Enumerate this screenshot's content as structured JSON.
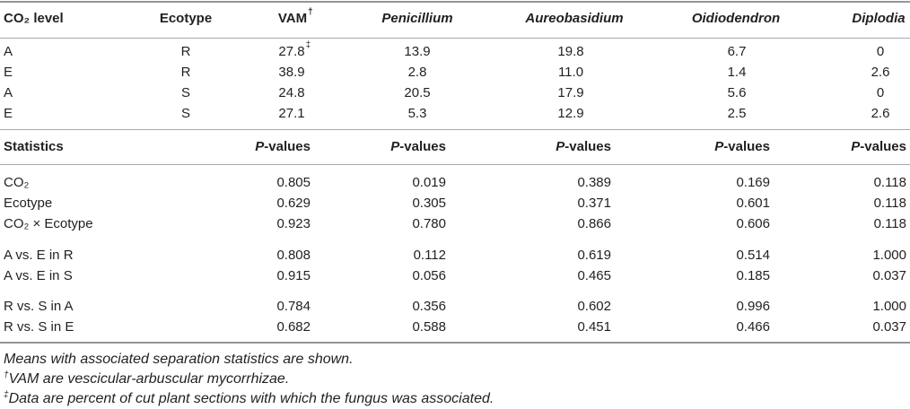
{
  "table": {
    "header": {
      "co2_level": "CO₂ level",
      "ecotype": "Ecotype",
      "vam": "VAM",
      "vam_mark": "†",
      "penicillium": "Penicillium",
      "aureobasidium": "Aureobasidium",
      "oidiodendron": "Oidiodendron",
      "diplodia": "Diplodia"
    },
    "means": [
      {
        "co2_level": "A",
        "ecotype": "R",
        "vam": "27.8",
        "vam_mark": "‡",
        "penicillium": "13.9",
        "aureobasidium": "19.8",
        "oidiodendron": "6.7",
        "diplodia": "0"
      },
      {
        "co2_level": "E",
        "ecotype": "R",
        "vam": "38.9",
        "penicillium": "2.8",
        "aureobasidium": "11.0",
        "oidiodendron": "1.4",
        "diplodia": "2.6"
      },
      {
        "co2_level": "A",
        "ecotype": "S",
        "vam": "24.8",
        "penicillium": "20.5",
        "aureobasidium": "17.9",
        "oidiodendron": "5.6",
        "diplodia": "0"
      },
      {
        "co2_level": "E",
        "ecotype": "S",
        "vam": "27.1",
        "penicillium": "5.3",
        "aureobasidium": "12.9",
        "oidiodendron": "2.5",
        "diplodia": "2.6"
      }
    ],
    "statistics": {
      "label": "Statistics",
      "p_value_headers": [
        {
          "symbol": "P",
          "suffix": "-values"
        },
        {
          "symbol": "P",
          "suffix": "-values"
        },
        {
          "symbol": "P",
          "suffix": "-values"
        },
        {
          "symbol": "P",
          "suffix": "-values"
        },
        {
          "symbol": "P",
          "suffix": "-values"
        }
      ],
      "rows": [
        {
          "label": "CO₂",
          "values": [
            "0.805",
            "0.019",
            "0.389",
            "0.169",
            "0.118"
          ]
        },
        {
          "label": "Ecotype",
          "values": [
            "0.629",
            "0.305",
            "0.371",
            "0.601",
            "0.118"
          ]
        },
        {
          "label": "CO₂ × Ecotype",
          "values": [
            "0.923",
            "0.780",
            "0.866",
            "0.606",
            "0.118"
          ]
        },
        {
          "label": "A vs. E in R",
          "values": [
            "0.808",
            "0.112",
            "0.619",
            "0.514",
            "1.000"
          ]
        },
        {
          "label": "A vs. E in S",
          "values": [
            "0.915",
            "0.056",
            "0.465",
            "0.185",
            "0.037"
          ]
        },
        {
          "label": "R vs. S in A",
          "values": [
            "0.784",
            "0.356",
            "0.602",
            "0.996",
            "1.000"
          ]
        },
        {
          "label": "R vs. S in E",
          "values": [
            "0.682",
            "0.588",
            "0.451",
            "0.466",
            "0.037"
          ]
        }
      ]
    }
  },
  "footnotes": [
    {
      "text": "Means with associated separation statistics are shown."
    },
    {
      "mark": "†",
      "text": "VAM are vescicular-arbuscular mycorrhizae."
    },
    {
      "mark": "‡",
      "text": "Data are percent of cut plant sections with which the fungus was associated."
    }
  ]
}
